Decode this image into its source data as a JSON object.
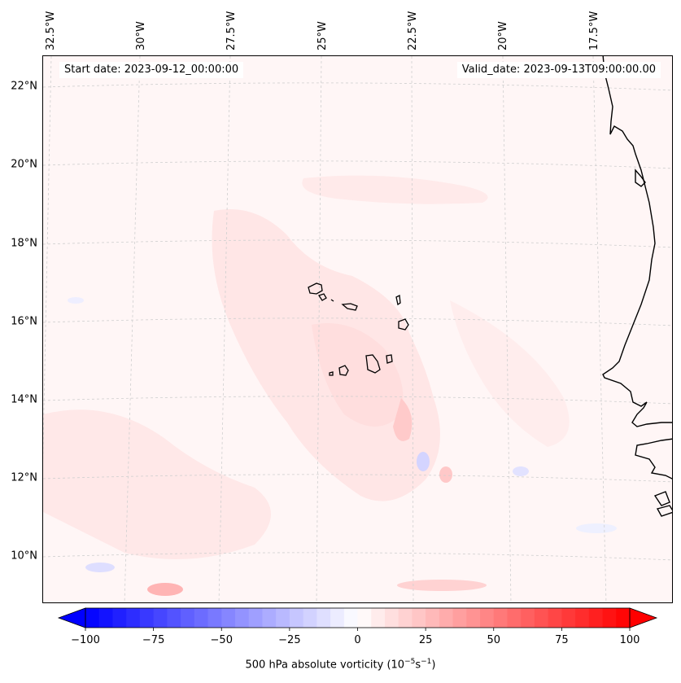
{
  "header": {
    "start_date": "Start date: 2023-09-12_00:00:00",
    "valid_date": "Valid_date: 2023-09-13T09:00:00.00"
  },
  "axes": {
    "lat_labels": [
      "22°N",
      "20°N",
      "18°N",
      "16°N",
      "14°N",
      "12°N",
      "10°N"
    ],
    "lon_labels": [
      "32.5°W",
      "30°W",
      "27.5°W",
      "25°W",
      "22.5°W",
      "20°W",
      "17.5°W"
    ]
  },
  "colorbar": {
    "ticks": [
      "−100",
      "−75",
      "−50",
      "−25",
      "0",
      "25",
      "50",
      "75",
      "100"
    ],
    "title": "500 hPa absolute vorticity (10",
    "title_exp1": "−5",
    "title_mid": "s",
    "title_exp2": "−1",
    "title_end": ")",
    "min": -100,
    "max": 100,
    "colormap": "bwr",
    "extend": "both"
  },
  "colors": {
    "coastline": "#000000",
    "gridline": "#c8c8c8",
    "positive_max": "#ff0000",
    "negative_max": "#0000ff",
    "background": "#fffafa"
  }
}
